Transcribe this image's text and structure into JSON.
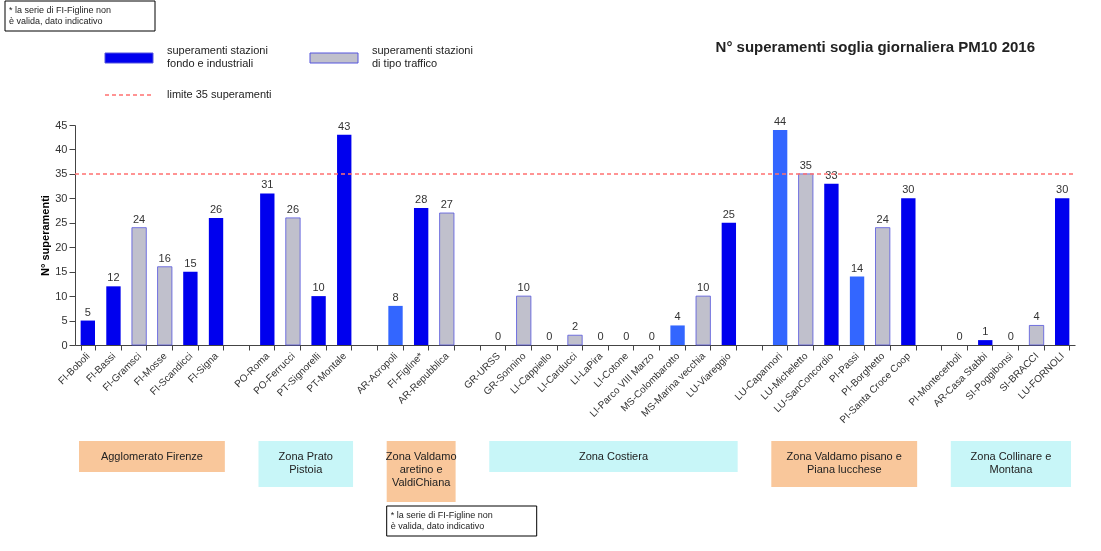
{
  "chart_data": {
    "type": "bar",
    "title": "N° superamenti soglia giornaliera PM10 2016",
    "ylabel": "N° superamenti",
    "categories": [
      "FI-Boboli",
      "FI-Bassi",
      "FI-Gramsci",
      "FI-Mosse",
      "FI-Scandicci",
      "FI-Signa",
      null,
      "PO-Roma",
      "PO-Ferrucci",
      "PT-Signorelli",
      "PT-Montale",
      null,
      "AR-Acropoli",
      "FI-Figline*",
      "AR-Repubblica",
      null,
      "GR-URSS",
      "GR-Sonnino",
      "LI-Cappiello",
      "LI-Carducci",
      "LI-LaPira",
      "LI-Cotone",
      "LI-Parco VIII Marzo",
      "MS-Colombarotto",
      "MS-Marina vecchia",
      "LU-Viareggio",
      null,
      "LU-Capannori",
      "LU-Micheletto",
      "LU-SanConcordio",
      "PI-Passi",
      "PI-Borghetto",
      "PI-Santa Croce Coop",
      null,
      "PI-Montecerboli",
      "AR-Casa Stabbi",
      "SI-Poggibonsi",
      "SI-BRACCI",
      "LU-FORNOLI"
    ],
    "series": [
      {
        "name": "superamenti stazioni fondo e industriali",
        "color": "#0000ee",
        "values": [
          5,
          12,
          null,
          null,
          15,
          26,
          null,
          31,
          null,
          10,
          43,
          null,
          8,
          28,
          null,
          null,
          0,
          null,
          0,
          null,
          0,
          0,
          0,
          4,
          null,
          25,
          null,
          44,
          null,
          33,
          14,
          null,
          30,
          null,
          0,
          1,
          0,
          null,
          30
        ],
        "colors": [
          "#0000ee",
          "#0000ee",
          null,
          null,
          "#0000ee",
          "#0000ee",
          null,
          "#0000ee",
          null,
          "#0000ee",
          "#0000ee",
          null,
          "#3366ff",
          "#0000ee",
          null,
          null,
          "#0000ee",
          null,
          "#0000ee",
          null,
          "#0000ee",
          "#0000ee",
          "#0000ee",
          "#3366ff",
          null,
          "#0000ee",
          null,
          "#3366ff",
          null,
          "#0000ee",
          "#3366ff",
          null,
          "#0000ee",
          null,
          "#0000ee",
          "#0000ee",
          "#0000ee",
          null,
          "#0000ee"
        ]
      },
      {
        "name": "superamenti stazioni di tipo traffico",
        "color": "#c0c0cc",
        "values": [
          null,
          null,
          24,
          16,
          null,
          null,
          null,
          null,
          26,
          null,
          null,
          null,
          null,
          null,
          27,
          null,
          null,
          10,
          null,
          2,
          null,
          null,
          null,
          null,
          10,
          null,
          null,
          null,
          35,
          null,
          null,
          24,
          null,
          null,
          null,
          null,
          null,
          4,
          null
        ]
      }
    ],
    "ylim": [
      0,
      45
    ],
    "yticks": [
      0,
      5,
      10,
      15,
      20,
      25,
      30,
      35,
      40,
      45
    ],
    "grid": false,
    "data_labels": true,
    "legend": "top left",
    "ref_lines": [
      {
        "axis": "y",
        "value": 35,
        "label": "limite 35 superamenti",
        "color": "#ff7070",
        "line_style": "dashed"
      }
    ],
    "annotations": [
      "Agglomerato Firenze",
      "Zona Prato Pistoia",
      "Zona Valdamo aretino e ValdiChiana",
      "Zona Costiera",
      "Zona Valdamo pisano e Piana lucchese",
      "Zona Collinare e Montana",
      "* la serie di FI-Figline non è valida, dato indicativo",
      "* la serie di FI-Figline non è valida, dato indicativo"
    ]
  }
}
